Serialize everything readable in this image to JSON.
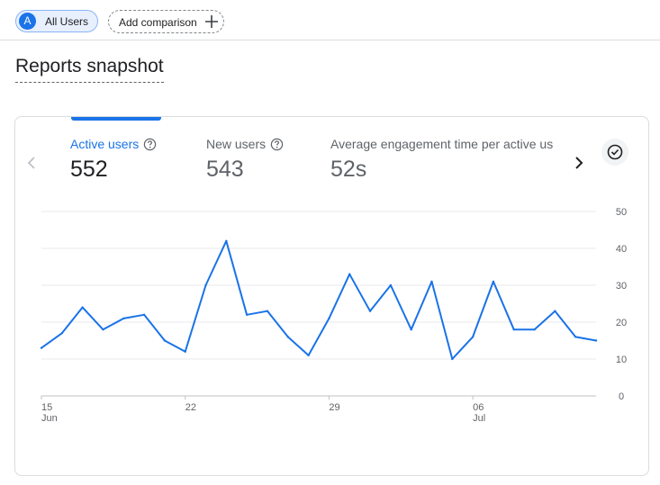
{
  "comparison_bar": {
    "user_chip": {
      "avatar_letter": "A",
      "label": "All Users"
    },
    "add_comparison_label": "Add comparison"
  },
  "page_title": "Reports snapshot",
  "card": {
    "metrics": [
      {
        "label": "Active users",
        "value": "552",
        "selected": true
      },
      {
        "label": "New users",
        "value": "543",
        "selected": false
      },
      {
        "label": "Average engagement time per active us",
        "value": "52s",
        "selected": false
      }
    ],
    "icons": {
      "prev": "chevron-left-icon",
      "next": "chevron-right-icon",
      "check": "check-circle-icon",
      "help": "help-circle-icon"
    }
  },
  "chart_data": {
    "type": "line",
    "x_tick_labels": [
      {
        "label": "15",
        "sublabel": "Jun"
      },
      {
        "label": "22",
        "sublabel": ""
      },
      {
        "label": "29",
        "sublabel": ""
      },
      {
        "label": "06",
        "sublabel": "Jul"
      }
    ],
    "y_tick_labels": [
      "50",
      "40",
      "30",
      "20",
      "10",
      "0"
    ],
    "ylim": [
      0,
      50
    ],
    "grid": true,
    "series": [
      {
        "color": "#1a73e8",
        "values": [
          13,
          17,
          24,
          18,
          21,
          22,
          15,
          12,
          30,
          42,
          22,
          23,
          16,
          11,
          21,
          33,
          23,
          30,
          18,
          31,
          10,
          16,
          31,
          18,
          18,
          23,
          16,
          15
        ]
      }
    ]
  }
}
